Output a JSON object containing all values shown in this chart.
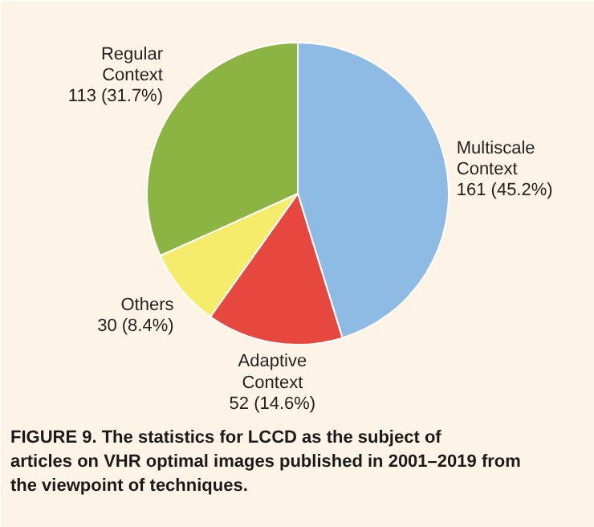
{
  "chart_data": {
    "type": "pie",
    "categories": [
      "Multiscale Context",
      "Adaptive Context",
      "Others",
      "Regular Context"
    ],
    "values": [
      161,
      52,
      30,
      113
    ],
    "colors": [
      "#8dbbe3",
      "#e6483f",
      "#f6ec6b",
      "#8bb443"
    ],
    "value_labels": [
      "161 (45.2%)",
      "52 (14.6%)",
      "30 (8.4%)",
      "113 (31.7%)"
    ],
    "annotations": [
      "FIGURE 9. The statistics for LCCD as the subject of articles on VHR optimal images published in 2001–2019 from the viewpoint of techniques."
    ]
  }
}
